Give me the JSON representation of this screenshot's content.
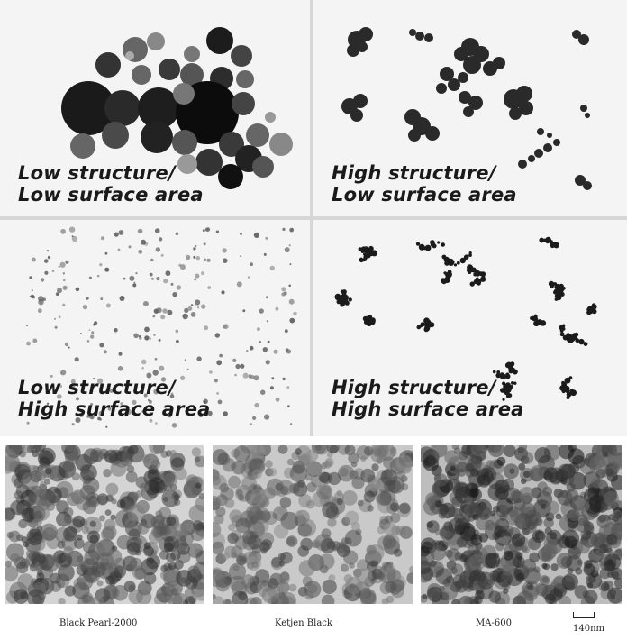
{
  "panels": {
    "tl": {
      "line1": "Low structure/",
      "line2": "Low surface area"
    },
    "tr": {
      "line1": "High structure/",
      "line2": "Low surface area"
    },
    "bl": {
      "line1": "Low structure/",
      "line2": "High surface area"
    },
    "br": {
      "line1": "High structure/",
      "line2": "High surface area"
    }
  },
  "micrographs": {
    "left": "Black Pearl-2000",
    "middle": "Ketjen  Black",
    "right": "MA-600",
    "scale": "140nm"
  }
}
